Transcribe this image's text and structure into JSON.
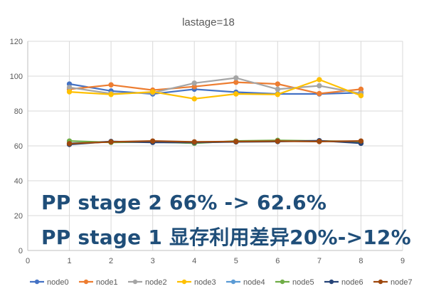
{
  "chart_data": {
    "type": "line",
    "title": "lastage=18",
    "xlabel": "",
    "ylabel": "",
    "xlim": [
      0,
      9
    ],
    "ylim": [
      0,
      120
    ],
    "x_ticks": [
      0,
      1,
      2,
      3,
      4,
      5,
      6,
      7,
      8,
      9
    ],
    "y_ticks": [
      0,
      20,
      40,
      60,
      80,
      100,
      120
    ],
    "grid": true,
    "legend_position": "bottom",
    "x": [
      1,
      2,
      3,
      4,
      5,
      6,
      7,
      8
    ],
    "series": [
      {
        "name": "node0",
        "color": "#4472c4",
        "values": [
          95.5,
          91.5,
          89.8,
          92.5,
          90.8,
          89.8,
          89.8,
          90.5
        ]
      },
      {
        "name": "node1",
        "color": "#ed7d31",
        "values": [
          92.5,
          95.0,
          92.0,
          94.0,
          96.5,
          95.5,
          90.0,
          92.5
        ]
      },
      {
        "name": "node2",
        "color": "#a5a5a5",
        "values": [
          93.5,
          90.0,
          90.5,
          96.0,
          99.0,
          92.5,
          94.5,
          90.0
        ]
      },
      {
        "name": "node3",
        "color": "#ffc000",
        "values": [
          91.0,
          89.5,
          91.0,
          87.0,
          89.8,
          89.5,
          98.0,
          88.8
        ]
      },
      {
        "name": "node4",
        "color": "#5b9bd5",
        "values": [
          61.5,
          62.5,
          62.2,
          61.8,
          62.5,
          62.8,
          62.8,
          62.3
        ]
      },
      {
        "name": "node5",
        "color": "#70ad47",
        "values": [
          62.8,
          62.0,
          62.3,
          61.5,
          62.8,
          63.2,
          62.8,
          62.5
        ]
      },
      {
        "name": "node6",
        "color": "#264478",
        "values": [
          60.8,
          62.5,
          62.0,
          62.0,
          62.3,
          62.5,
          63.0,
          61.5
        ]
      },
      {
        "name": "node7",
        "color": "#9e480e",
        "values": [
          61.3,
          62.3,
          62.8,
          62.3,
          62.5,
          62.7,
          62.5,
          62.8
        ]
      }
    ],
    "annotations": [
      "PP stage 2 66% -> 62.6%",
      "PP stage 1 显存利用差异20%->12%"
    ]
  }
}
